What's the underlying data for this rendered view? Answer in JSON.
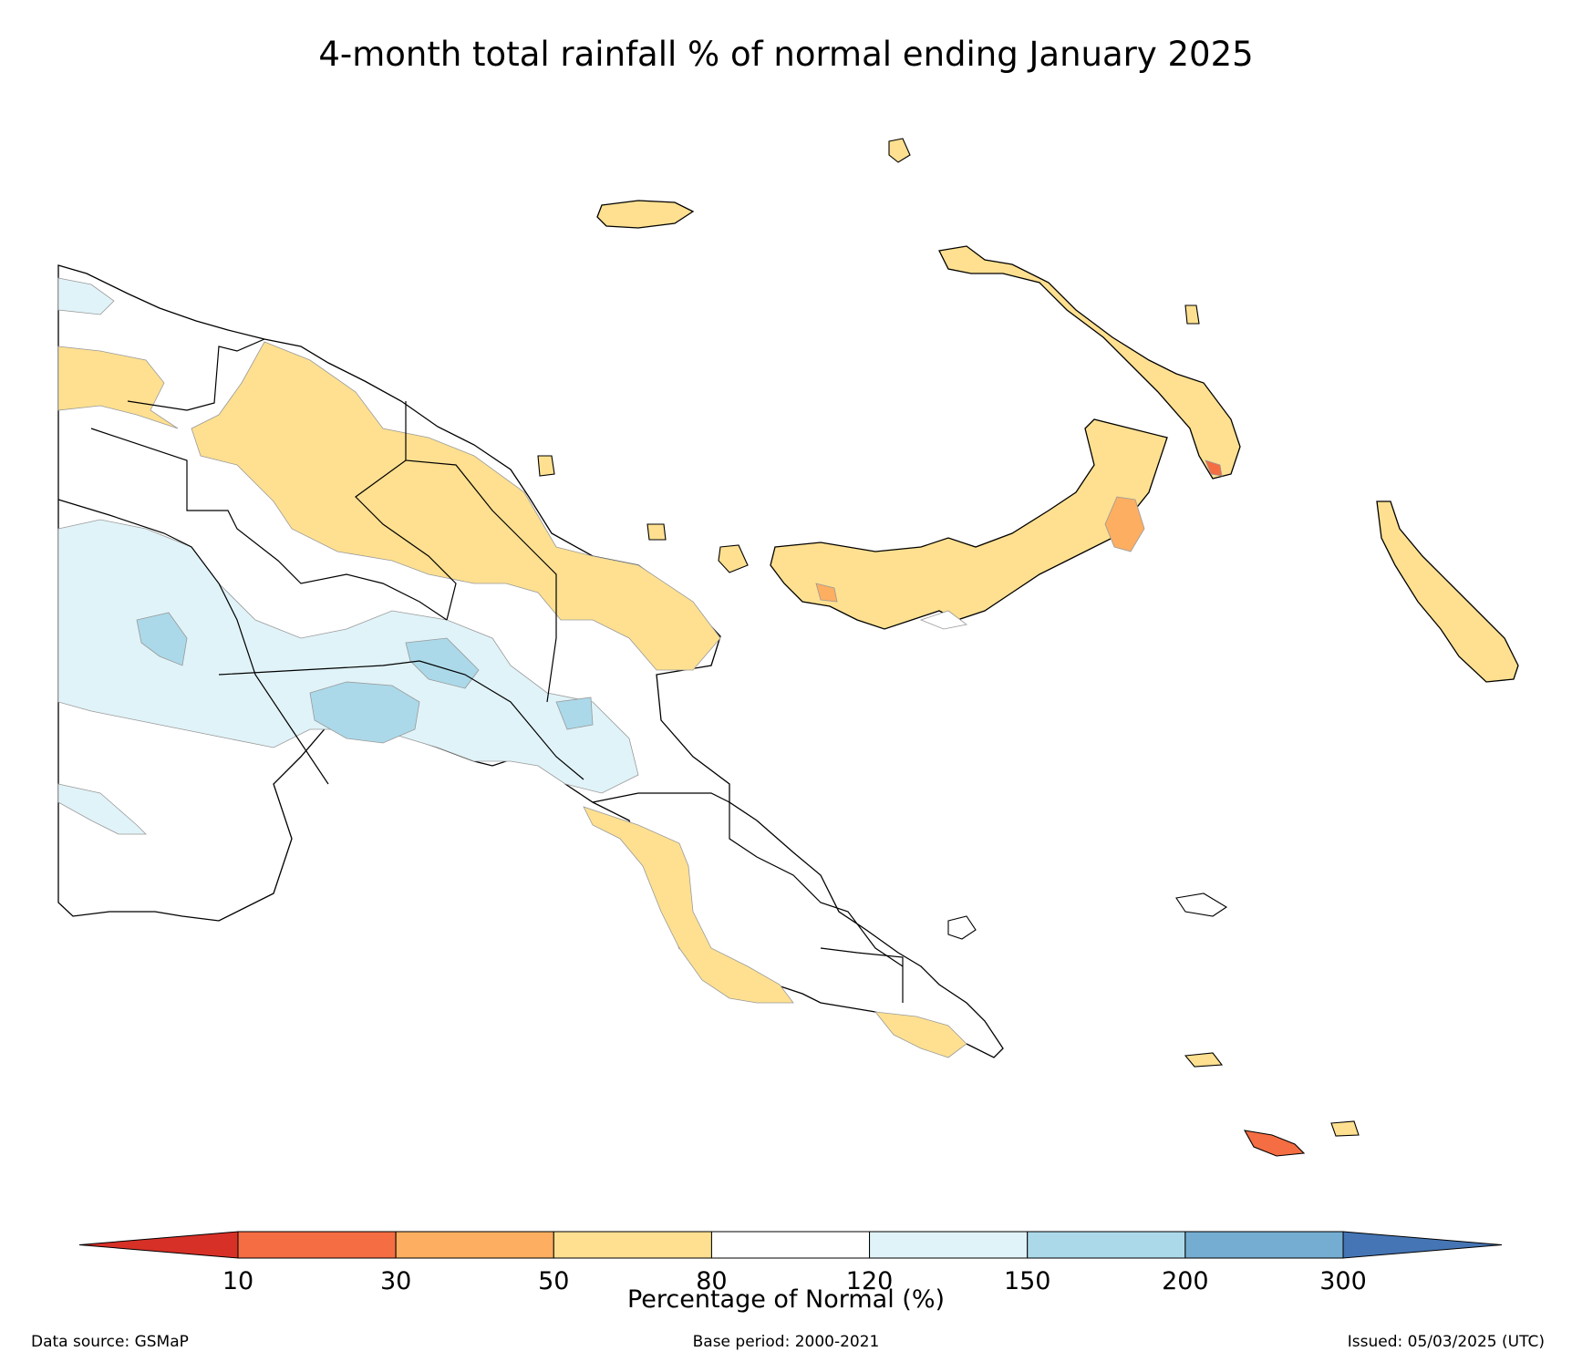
{
  "title": "4-month total rainfall % of normal ending January 2025",
  "legend": {
    "title": "Percentage of Normal (%)",
    "ticks": [
      "10",
      "30",
      "50",
      "80",
      "120",
      "150",
      "200",
      "300"
    ],
    "colors": [
      "#d73027",
      "#f46d43",
      "#fdae61",
      "#fee090",
      "#ffffff",
      "#e0f3f8",
      "#abd9e9",
      "#74add1",
      "#4575b4"
    ],
    "extend": "both"
  },
  "map": {
    "region": "Papua New Guinea",
    "land_outline_color": "#000000",
    "contour_outline_color": "#9a9a9a"
  },
  "footer": {
    "data_source": "Data source: GSMaP",
    "base_period": "Base period: 2000-2021",
    "issued": "Issued: 05/03/2025 (UTC)"
  }
}
